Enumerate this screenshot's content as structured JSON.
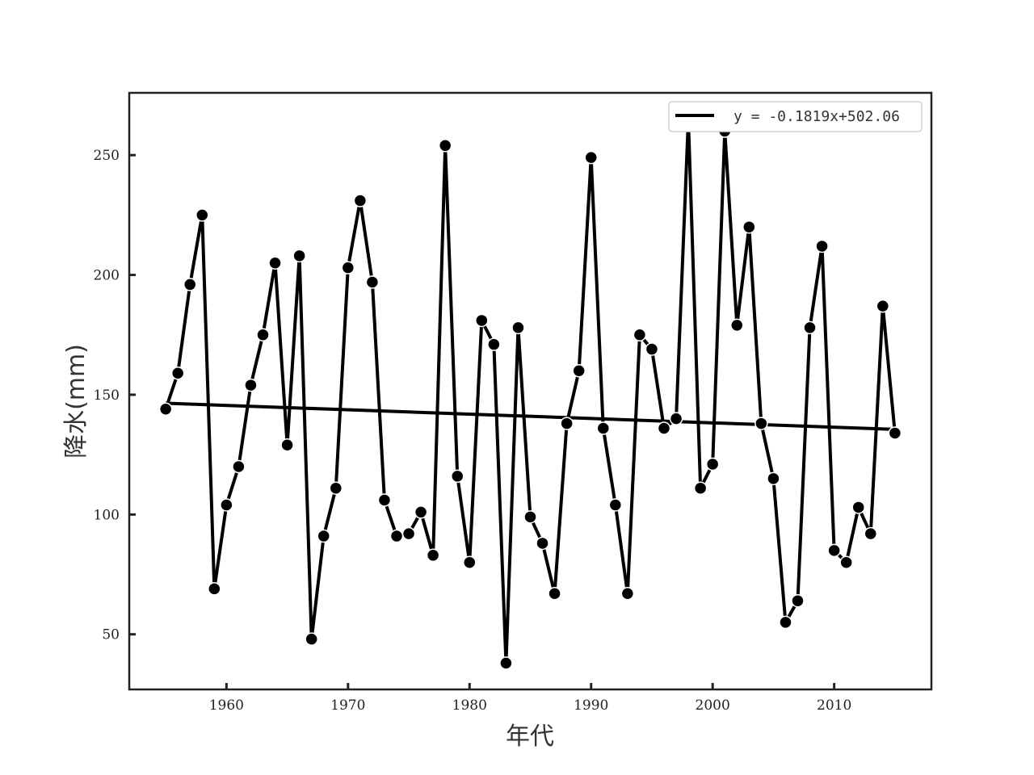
{
  "chart_data": {
    "type": "line",
    "xlabel": "年代",
    "ylabel": "降水(mm)",
    "xlim": [
      1952,
      2018
    ],
    "ylim": [
      27,
      276
    ],
    "xticks": [
      1960,
      1970,
      1980,
      1990,
      2000,
      2010
    ],
    "yticks": [
      50,
      100,
      150,
      200,
      250
    ],
    "grid": false,
    "legend_position": "top-right",
    "legend": [
      "y = -0.1819x+502.06"
    ],
    "series": [
      {
        "x": [
          1955,
          1956,
          1957,
          1958,
          1959,
          1960,
          1961,
          1962,
          1963,
          1964,
          1965,
          1966,
          1967,
          1968,
          1969,
          1970,
          1971,
          1972,
          1973,
          1974,
          1975,
          1976,
          1977,
          1978,
          1979,
          1980,
          1981,
          1982,
          1983,
          1984,
          1985,
          1986,
          1987,
          1988,
          1989,
          1990,
          1991,
          1992,
          1993,
          1994,
          1995,
          1996,
          1997,
          1998,
          1999,
          2000,
          2001,
          2002,
          2003,
          2004,
          2005,
          2006,
          2007,
          2008,
          2009,
          2010,
          2011,
          2012,
          2013,
          2014,
          2015
        ],
        "values": [
          144,
          159,
          196,
          225,
          69,
          104,
          120,
          154,
          175,
          205,
          129,
          208,
          48,
          91,
          111,
          203,
          231,
          197,
          106,
          91,
          92,
          101,
          83,
          254,
          116,
          80,
          181,
          171,
          38,
          178,
          99,
          88,
          67,
          138,
          160,
          249,
          136,
          104,
          67,
          175,
          169,
          136,
          140,
          265,
          111,
          121,
          260,
          179,
          220,
          138,
          115,
          55,
          64,
          178,
          212,
          85,
          80,
          103,
          92,
          187,
          134
        ],
        "color": "#000000"
      }
    ],
    "trend": {
      "equation": "y = -0.1819x+502.06",
      "slope": -0.1819,
      "intercept": 502.06,
      "x_range": [
        1955,
        2015
      ],
      "color": "#000000"
    }
  }
}
